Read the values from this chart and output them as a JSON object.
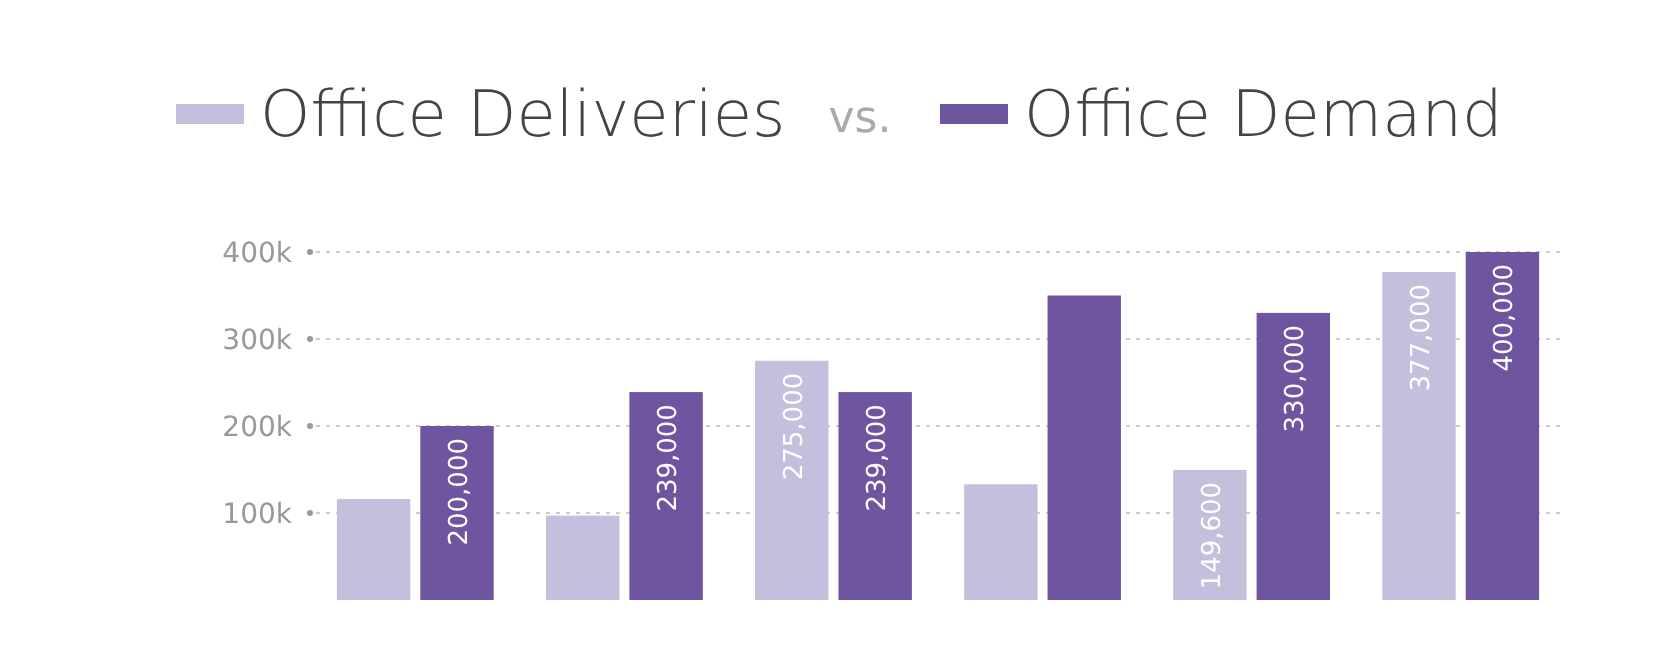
{
  "chart_data": {
    "type": "bar",
    "categories": [
      null,
      null,
      null,
      null,
      null,
      null
    ],
    "series": [
      {
        "name": "Office Deliveries",
        "color": "#c3bfdd",
        "values": [
          116000,
          97000,
          275000,
          133000,
          149600,
          377000
        ],
        "value_labels": [
          null,
          null,
          "275,000",
          null,
          "149,600",
          "377,000"
        ]
      },
      {
        "name": "Office Demand",
        "color": "#6f55a0",
        "values": [
          200000,
          239000,
          239000,
          350000,
          330000,
          400000
        ],
        "value_labels": [
          "200,000",
          "239,000",
          "239,000",
          null,
          "330,000",
          "400,000"
        ]
      }
    ],
    "annotations": [
      "vs."
    ],
    "ylim": [
      0,
      400000
    ],
    "yticks": [
      {
        "value": 100000,
        "label": "100k"
      },
      {
        "value": 200000,
        "label": "200k"
      },
      {
        "value": 300000,
        "label": "300k"
      },
      {
        "value": 400000,
        "label": "400k"
      }
    ],
    "grid": "y",
    "legend": "top"
  }
}
